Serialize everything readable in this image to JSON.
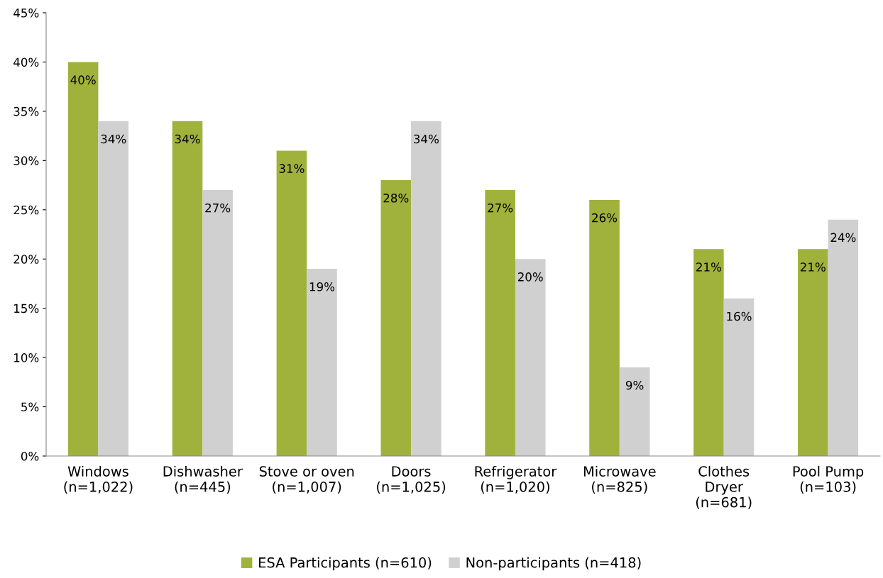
{
  "chart_data": {
    "type": "bar",
    "categories": [
      "Windows\n(n=1,022)",
      "Dishwasher\n(n=445)",
      "Stove or oven\n(n=1,007)",
      "Doors\n(n=1,025)",
      "Refrigerator\n(n=1,020)",
      "Microwave\n(n=825)",
      "Clothes\nDryer\n(n=681)",
      "Pool Pump\n(n=103)"
    ],
    "series": [
      {
        "name": "ESA Participants (n=610)",
        "color": "#a0b23c",
        "values": [
          40,
          34,
          31,
          28,
          27,
          26,
          21,
          21
        ],
        "value_labels": [
          "40%",
          "34%",
          "31%",
          "28%",
          "27%",
          "26%",
          "21%",
          "21%"
        ]
      },
      {
        "name": "Non-participants (n=418)",
        "color": "#d0d0d0",
        "values": [
          34,
          27,
          19,
          34,
          20,
          9,
          16,
          24
        ],
        "value_labels": [
          "34%",
          "27%",
          "19%",
          "34%",
          "20%",
          "9%",
          "16%",
          "24%"
        ]
      }
    ],
    "ylim": [
      0,
      45
    ],
    "yticks": [
      {
        "value": 0,
        "label": "0%"
      },
      {
        "value": 5,
        "label": "5%"
      },
      {
        "value": 10,
        "label": "10%"
      },
      {
        "value": 15,
        "label": "15%"
      },
      {
        "value": 20,
        "label": "20%"
      },
      {
        "value": 25,
        "label": "25%"
      },
      {
        "value": 30,
        "label": "30%"
      },
      {
        "value": 35,
        "label": "35%"
      },
      {
        "value": 40,
        "label": "40%"
      },
      {
        "value": 45,
        "label": "45%"
      }
    ],
    "grid": false,
    "legend": "bottom"
  }
}
